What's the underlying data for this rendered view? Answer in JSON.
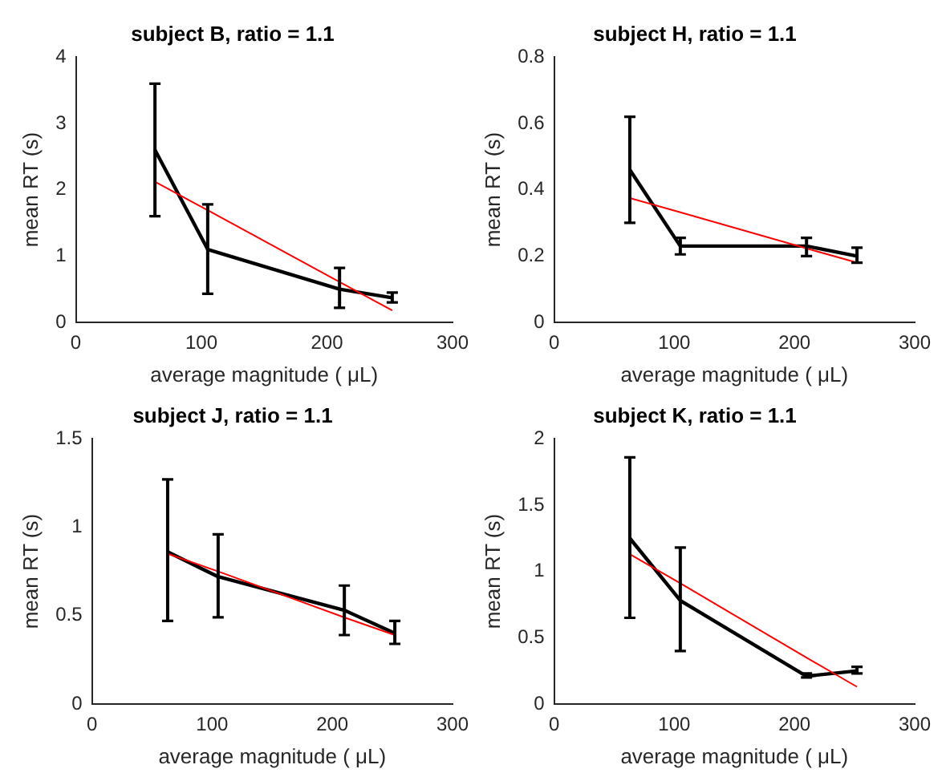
{
  "chart_data": [
    {
      "type": "line",
      "title": "subject B, ratio = 1.1",
      "xlabel": "average magnitude ( μL)",
      "ylabel": "mean RT (s)",
      "x": [
        63,
        105,
        210,
        252
      ],
      "xlim": [
        0,
        300
      ],
      "xticks": [
        0,
        100,
        200,
        300
      ],
      "ylim": [
        0,
        4
      ],
      "yticks": [
        0,
        1,
        2,
        3,
        4
      ],
      "grid": false,
      "legend": false,
      "line_style": "solid",
      "series": [
        {
          "color": "#000000",
          "values": [
            2.6,
            1.1,
            0.5,
            0.37
          ],
          "errors": [
            [
              1.6,
              3.6
            ],
            [
              0.43,
              1.78
            ],
            [
              0.22,
              0.82
            ],
            [
              0.3,
              0.45
            ]
          ]
        },
        {
          "color": "#ff0000",
          "values": [
            2.12,
            1.69,
            0.61,
            0.18
          ]
        }
      ]
    },
    {
      "type": "line",
      "title": "subject H, ratio = 1.1",
      "xlabel": "average magnitude ( μL)",
      "ylabel": "mean RT (s)",
      "x": [
        63,
        105,
        210,
        252
      ],
      "xlim": [
        0,
        300
      ],
      "xticks": [
        0,
        100,
        200,
        300
      ],
      "ylim": [
        0,
        0.8
      ],
      "yticks": [
        0,
        0.2,
        0.4,
        0.6,
        0.8
      ],
      "grid": false,
      "legend": false,
      "line_style": "solid",
      "series": [
        {
          "color": "#000000",
          "values": [
            0.46,
            0.23,
            0.23,
            0.2
          ],
          "errors": [
            [
              0.3,
              0.62
            ],
            [
              0.205,
              0.255
            ],
            [
              0.2,
              0.255
            ],
            [
              0.18,
              0.225
            ]
          ]
        },
        {
          "color": "#ff0000",
          "values": [
            0.375,
            0.332,
            0.223,
            0.18
          ]
        }
      ]
    },
    {
      "type": "line",
      "title": "subject J, ratio = 1.1",
      "xlabel": "average magnitude ( μL)",
      "ylabel": "mean RT (s)",
      "x": [
        63,
        105,
        210,
        252
      ],
      "xlim": [
        0,
        300
      ],
      "xticks": [
        0,
        100,
        200,
        300
      ],
      "ylim": [
        0,
        1.5
      ],
      "yticks": [
        0,
        0.5,
        1,
        1.5
      ],
      "grid": false,
      "legend": false,
      "line_style": "solid",
      "series": [
        {
          "color": "#000000",
          "values": [
            0.86,
            0.72,
            0.53,
            0.4
          ],
          "errors": [
            [
              0.47,
              1.27
            ],
            [
              0.49,
              0.96
            ],
            [
              0.39,
              0.67
            ],
            [
              0.34,
              0.47
            ]
          ]
        },
        {
          "color": "#ff0000",
          "values": [
            0.85,
            0.75,
            0.49,
            0.39
          ]
        }
      ]
    },
    {
      "type": "line",
      "title": "subject K, ratio = 1.1",
      "xlabel": "average magnitude ( μL)",
      "ylabel": "mean RT (s)",
      "x": [
        63,
        105,
        210,
        252
      ],
      "xlim": [
        0,
        300
      ],
      "xticks": [
        0,
        100,
        200,
        300
      ],
      "ylim": [
        0,
        2
      ],
      "yticks": [
        0,
        0.5,
        1,
        1.5,
        2
      ],
      "grid": false,
      "legend": false,
      "line_style": "solid",
      "series": [
        {
          "color": "#000000",
          "values": [
            1.25,
            0.78,
            0.21,
            0.25
          ],
          "errors": [
            [
              0.65,
              1.86
            ],
            [
              0.4,
              1.18
            ],
            [
              0.2,
              0.23
            ],
            [
              0.23,
              0.28
            ]
          ]
        },
        {
          "color": "#ff0000",
          "values": [
            1.13,
            0.91,
            0.35,
            0.13
          ]
        }
      ]
    }
  ]
}
